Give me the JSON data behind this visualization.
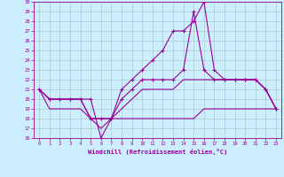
{
  "xlabel": "Windchill (Refroidissement éolien,°C)",
  "bg_color": "#cceeff",
  "line_color": "#990099",
  "grid_color": "#aacccc",
  "xlim": [
    -0.5,
    23.5
  ],
  "ylim": [
    16,
    30
  ],
  "yticks": [
    16,
    17,
    18,
    19,
    20,
    21,
    22,
    23,
    24,
    25,
    26,
    27,
    28,
    29,
    30
  ],
  "xticks": [
    0,
    1,
    2,
    3,
    4,
    5,
    6,
    7,
    8,
    9,
    10,
    11,
    12,
    13,
    14,
    15,
    16,
    17,
    18,
    19,
    20,
    21,
    22,
    23
  ],
  "s1_x": [
    0,
    1,
    2,
    3,
    4,
    5,
    6,
    7,
    8,
    9,
    10,
    11,
    12,
    13,
    14,
    15,
    16,
    17,
    18,
    19,
    20,
    21,
    22,
    23
  ],
  "s1_y": [
    21,
    20,
    20,
    20,
    20,
    20,
    16,
    18,
    21,
    22,
    23,
    24,
    25,
    27,
    27,
    28,
    30,
    23,
    22,
    22,
    22,
    22,
    21,
    19
  ],
  "s2_x": [
    0,
    1,
    2,
    3,
    4,
    5,
    6,
    7,
    8,
    9,
    10,
    11,
    12,
    13,
    14,
    15,
    16,
    17,
    18,
    19,
    20,
    21,
    22,
    23
  ],
  "s2_y": [
    21,
    20,
    20,
    20,
    20,
    18,
    18,
    18,
    20,
    21,
    22,
    22,
    22,
    22,
    23,
    29,
    23,
    22,
    22,
    22,
    22,
    22,
    21,
    19
  ],
  "s3_x": [
    0,
    1,
    2,
    3,
    4,
    5,
    6,
    7,
    8,
    9,
    10,
    11,
    12,
    13,
    14,
    15,
    16,
    17,
    18,
    19,
    20,
    21,
    22,
    23
  ],
  "s3_y": [
    21,
    20,
    20,
    20,
    20,
    18,
    18,
    18,
    19,
    20,
    21,
    21,
    21,
    21,
    22,
    22,
    22,
    22,
    22,
    22,
    22,
    22,
    21,
    19
  ],
  "s4_x": [
    0,
    1,
    2,
    3,
    4,
    5,
    6,
    7,
    8,
    9,
    10,
    11,
    12,
    13,
    14,
    15,
    16,
    17,
    18,
    19,
    20,
    21,
    22,
    23
  ],
  "s4_y": [
    21,
    19,
    19,
    19,
    19,
    18,
    17,
    18,
    18,
    18,
    18,
    18,
    18,
    18,
    18,
    18,
    19,
    19,
    19,
    19,
    19,
    19,
    19,
    19
  ]
}
